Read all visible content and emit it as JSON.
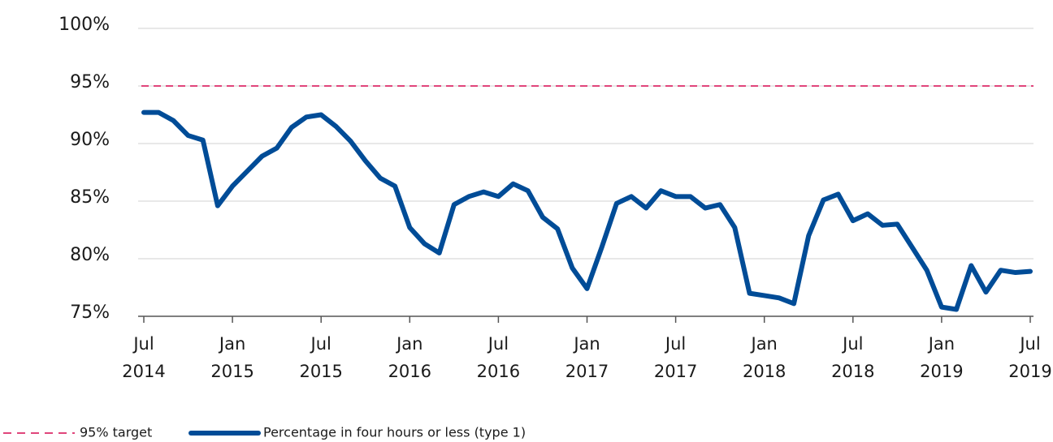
{
  "chart_data": {
    "type": "line",
    "categories": [
      "Jul\n2014",
      null,
      null,
      null,
      null,
      null,
      "Jan\n2015",
      null,
      null,
      null,
      null,
      null,
      "Jul\n2015",
      null,
      null,
      null,
      null,
      null,
      "Jan\n2016",
      null,
      null,
      null,
      null,
      null,
      "Jul\n2016",
      null,
      null,
      null,
      null,
      null,
      "Jan\n2017",
      null,
      null,
      null,
      null,
      null,
      "Jul\n2017",
      null,
      null,
      null,
      null,
      null,
      "Jan\n2018",
      null,
      null,
      null,
      null,
      null,
      "Jul\n2018",
      null,
      null,
      null,
      null,
      null,
      "Jan\n2019",
      null,
      null,
      null,
      null,
      null,
      "Jul\n2019"
    ],
    "series": [
      {
        "name": "Percentage in four hours or less (type 1)",
        "color": "#004c97",
        "values": [
          92.7,
          92.7,
          92.0,
          90.7,
          90.3,
          84.6,
          86.3,
          87.6,
          88.9,
          89.6,
          91.4,
          92.3,
          92.5,
          91.5,
          90.2,
          88.5,
          87.0,
          86.3,
          82.7,
          81.3,
          80.5,
          84.7,
          85.4,
          85.8,
          85.4,
          86.5,
          85.9,
          83.6,
          82.6,
          79.2,
          77.4,
          81.0,
          84.8,
          85.4,
          84.4,
          85.9,
          85.4,
          85.4,
          84.4,
          84.7,
          82.7,
          77.0,
          76.8,
          76.6,
          76.1,
          82.0,
          85.1,
          85.6,
          83.3,
          83.9,
          82.9,
          83.0,
          81.0,
          79.0,
          75.8,
          75.6,
          79.4,
          77.1,
          79.0,
          78.8,
          78.9
        ]
      }
    ],
    "target": {
      "name": "95% target",
      "value": 95,
      "color": "#e0457b"
    },
    "ylim": [
      75,
      100
    ],
    "yticks": [
      {
        "value": 75,
        "label": "75%"
      },
      {
        "value": 80,
        "label": "80%"
      },
      {
        "value": 85,
        "label": "85%"
      },
      {
        "value": 90,
        "label": "90%"
      },
      {
        "value": 95,
        "label": "95%"
      },
      {
        "value": 100,
        "label": "100%"
      }
    ],
    "grid": true
  }
}
